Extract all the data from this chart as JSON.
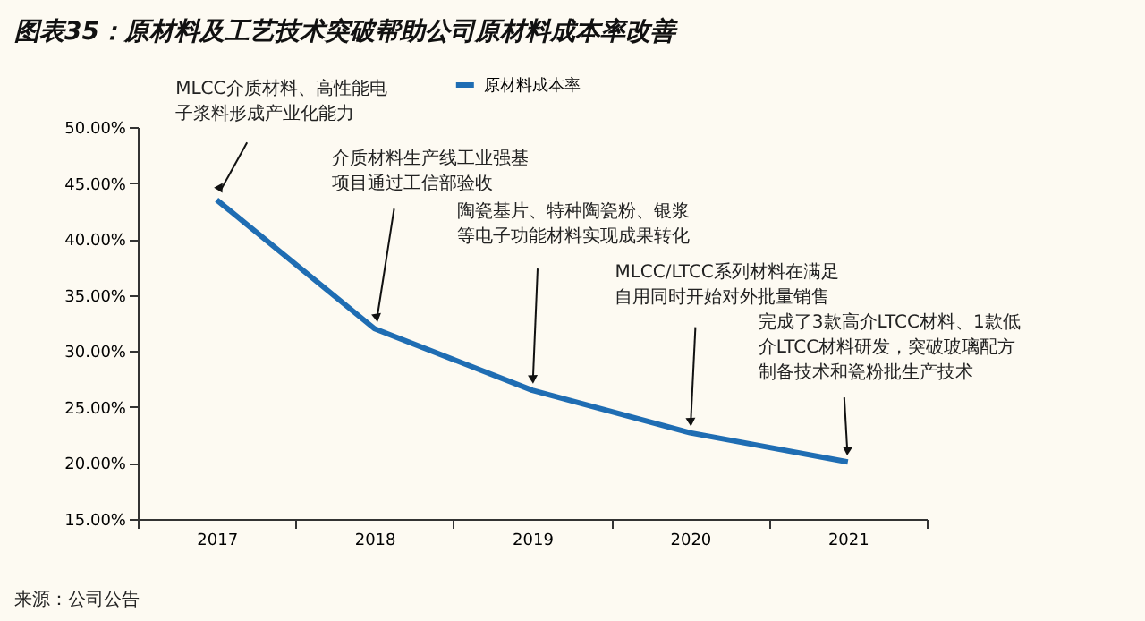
{
  "chart_data": {
    "type": "line",
    "title": "图表35：原材料及工艺技术突破帮助公司原材料成本率改善",
    "categories": [
      "2017",
      "2018",
      "2019",
      "2020",
      "2021"
    ],
    "series": [
      {
        "name": "原材料成本率",
        "color": "#1f6db3",
        "values": [
          43.5,
          32.0,
          26.5,
          22.7,
          20.1
        ]
      }
    ],
    "ylim": [
      15,
      50
    ],
    "yticks": [
      {
        "value": 15,
        "label": "15.00%"
      },
      {
        "value": 20,
        "label": "20.00%"
      },
      {
        "value": 25,
        "label": "25.00%"
      },
      {
        "value": 30,
        "label": "30.00%"
      },
      {
        "value": 35,
        "label": "35.00%"
      },
      {
        "value": 40,
        "label": "40.00%"
      },
      {
        "value": 45,
        "label": "45.00%"
      },
      {
        "value": 50,
        "label": "50.00%"
      }
    ],
    "grid": false,
    "legend": "top",
    "marker": "none",
    "line_style": "solid",
    "annotations": [
      {
        "text": "MLCC介质材料、高性能电子浆料形成产业化能力",
        "x": "2017",
        "y": 43.5
      },
      {
        "text": "介质材料生产线工业强基项目通过工信部验收",
        "x": "2018",
        "y": 32.0
      },
      {
        "text": "陶瓷基片、特种陶瓷粉、银浆等电子功能材料实现成果转化",
        "x": "2019",
        "y": 26.5
      },
      {
        "text": "MLCC/LTCC系列材料在满足自用同时开始对外批量销售",
        "x": "2020",
        "y": 22.7
      },
      {
        "text": "完成了3款高介LTCC材料、1款低介LTCC材料研发，突破玻璃配方制备技术和瓷粉批生产技术",
        "x": "2021",
        "y": 20.1
      },
      "来源：公司公告"
    ]
  }
}
